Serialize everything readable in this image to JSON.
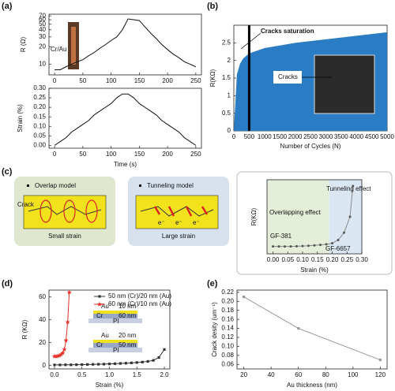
{
  "panel_labels": [
    "(a)",
    "(b)",
    "(c)",
    "(d)",
    "(e)"
  ],
  "diagram": {
    "overlap_title": "Overlap model",
    "crack": "Crack",
    "small_strain": "Small strain",
    "tunneling_title": "Tunneling model",
    "large_strain": "Large strain",
    "electron": "e⁻"
  },
  "insets": {
    "top": [
      "Au",
      "10 nm",
      "Cr",
      "60 nm",
      "PI"
    ],
    "bottom": [
      "Au",
      "20 nm",
      "Cr",
      "50 nm",
      "PI"
    ]
  },
  "chart_data": [
    {
      "type": "line",
      "ylabel": "R (Ω)",
      "ylog": true,
      "annotations": [
        "Cr/Au"
      ],
      "x": [
        0,
        10,
        20,
        30,
        40,
        50,
        60,
        70,
        80,
        90,
        100,
        110,
        120,
        130,
        140,
        150,
        160,
        170,
        180,
        190,
        200,
        210,
        220,
        230,
        240,
        250
      ],
      "series": [
        {
          "color": "#111111",
          "values": [
            8,
            8,
            9,
            10,
            11,
            12,
            14,
            16,
            19,
            22,
            26,
            30,
            40,
            62,
            60,
            58,
            45,
            35,
            28,
            22,
            18,
            15,
            13,
            11,
            10,
            9
          ]
        }
      ],
      "xlim": [
        -10,
        260
      ],
      "xticks": [
        0,
        50,
        100,
        150,
        200,
        250
      ],
      "ylim": [
        6.5,
        75
      ],
      "yticks": [
        10,
        20,
        30,
        40,
        50,
        60,
        70
      ]
    },
    {
      "type": "line",
      "xlabel": "Time (s)",
      "ylabel": "Strain (%)",
      "x": [
        0,
        10,
        20,
        30,
        40,
        50,
        60,
        70,
        80,
        90,
        100,
        110,
        120,
        130,
        140,
        150,
        160,
        170,
        180,
        190,
        200,
        210,
        220,
        230,
        240,
        250
      ],
      "series": [
        {
          "color": "#111111",
          "values": [
            0,
            0.02,
            0.04,
            0.07,
            0.09,
            0.11,
            0.13,
            0.16,
            0.18,
            0.2,
            0.22,
            0.25,
            0.27,
            0.27,
            0.25,
            0.22,
            0.2,
            0.18,
            0.16,
            0.13,
            0.11,
            0.09,
            0.07,
            0.04,
            0.02,
            0
          ]
        }
      ],
      "xlim": [
        -10,
        260
      ],
      "xticks": [
        0,
        50,
        100,
        150,
        200,
        250
      ],
      "ylim": [
        -0.015,
        0.3
      ],
      "yticks": [
        {
          "value": 0,
          "label": "0.00"
        },
        {
          "value": 0.05,
          "label": "0.05"
        },
        {
          "value": 0.1,
          "label": "0.10"
        },
        {
          "value": 0.15,
          "label": "0.15"
        },
        {
          "value": 0.2,
          "label": "0.20"
        },
        {
          "value": 0.25,
          "label": "0.25"
        },
        {
          "value": 0.3,
          "label": "0.30"
        }
      ]
    },
    {
      "type": "area",
      "xlabel": "Number of Cycles (N)",
      "ylabel": "R(KΩ)",
      "annotations": [
        "Cracks saturation",
        "Cracks"
      ],
      "cycle_marker": 500,
      "x": [
        0,
        100,
        200,
        300,
        500,
        1000,
        2000,
        3000,
        4000,
        5000
      ],
      "series": [
        {
          "color": "#2a7cc4",
          "values": [
            0,
            1.6,
            1.9,
            2.05,
            2.2,
            2.35,
            2.5,
            2.6,
            2.7,
            2.8
          ]
        }
      ],
      "xlim": [
        0,
        5000
      ],
      "xticks": [
        0,
        500,
        1000,
        1500,
        2000,
        2500,
        3000,
        3500,
        4000,
        4500,
        5000
      ],
      "ylim": [
        0,
        3
      ],
      "yticks": [
        0,
        0.5,
        1,
        1.5,
        2,
        2.5
      ]
    },
    {
      "type": "line",
      "xlabel": "Strain (%)",
      "ylabel": "R(KΩ)",
      "annotations": [
        "Tunneling effect",
        "Overlapping effect",
        "GF-381",
        "GF-6657"
      ],
      "shade_split": 0.19,
      "x": [
        0,
        0.02,
        0.04,
        0.06,
        0.08,
        0.1,
        0.12,
        0.14,
        0.16,
        0.18,
        0.2,
        0.22,
        0.24,
        0.26,
        0.27
      ],
      "series": [
        {
          "color": "#888888",
          "marker": "circle",
          "values": [
            7,
            7,
            7,
            7,
            7.2,
            7.4,
            7.6,
            8,
            8.5,
            9,
            10,
            13,
            20,
            35,
            64
          ]
        }
      ],
      "xlim": [
        -0.02,
        0.3
      ],
      "xticks": [
        {
          "value": 0,
          "label": "0.00"
        },
        {
          "value": 0.05,
          "label": "0.05"
        },
        {
          "value": 0.1,
          "label": "0.10"
        },
        {
          "value": 0.15,
          "label": "0.15"
        },
        {
          "value": 0.2,
          "label": "0.20"
        },
        {
          "value": 0.25,
          "label": "0.25"
        },
        {
          "value": 0.3,
          "label": "0.30"
        }
      ],
      "ylim": [
        0,
        70
      ]
    },
    {
      "type": "line",
      "xlabel": "Strain (%)",
      "ylabel": "R (KΩ)",
      "legend": "upper right",
      "series": [
        {
          "name": "50 nm (Cr)/20 nm (Au)",
          "color": "#333333",
          "marker": "square",
          "x": [
            0,
            0.1,
            0.2,
            0.3,
            0.4,
            0.5,
            0.6,
            0.7,
            0.8,
            0.9,
            1,
            1.1,
            1.2,
            1.3,
            1.4,
            1.5,
            1.6,
            1.7,
            1.8,
            1.9,
            2
          ],
          "values": [
            0.5,
            0.5,
            0.6,
            0.6,
            0.7,
            0.8,
            0.9,
            1,
            1.1,
            1.2,
            1.4,
            1.6,
            1.8,
            2,
            2.3,
            2.6,
            3,
            3.6,
            4.5,
            7,
            14
          ]
        },
        {
          "name": "60 nm (Cr)/10 nm (Au)",
          "color": "#e8312a",
          "marker": "star",
          "x": [
            0,
            0.03,
            0.06,
            0.09,
            0.12,
            0.15,
            0.18,
            0.21,
            0.24,
            0.27
          ],
          "values": [
            8,
            8,
            8.3,
            8.7,
            9.5,
            11,
            14,
            22,
            38,
            64
          ]
        }
      ],
      "xlim": [
        -0.1,
        2.1
      ],
      "xticks": [
        {
          "value": 0,
          "label": "0.0"
        },
        {
          "value": 0.5,
          "label": "0.5"
        },
        {
          "value": 1,
          "label": "1.0"
        },
        {
          "value": 1.5,
          "label": "1.5"
        },
        {
          "value": 2,
          "label": "2.0"
        }
      ],
      "ylim": [
        -3,
        66
      ],
      "yticks": [
        0,
        20,
        40,
        60
      ]
    },
    {
      "type": "line",
      "xlabel": "Au thickness (nm)",
      "ylabel": "Crack desity (um⁻¹)",
      "x": [
        20,
        60,
        120
      ],
      "series": [
        {
          "color": "#999999",
          "marker": "square",
          "values": [
            0.21,
            0.14,
            0.07
          ]
        }
      ],
      "xlim": [
        15,
        125
      ],
      "xticks": [
        20,
        40,
        60,
        80,
        100,
        120
      ],
      "ylim": [
        0.05,
        0.225
      ],
      "yticks": [
        {
          "value": 0.06,
          "label": "0.06"
        },
        {
          "value": 0.08,
          "label": "0.08"
        },
        {
          "value": 0.1,
          "label": "0.10"
        },
        {
          "value": 0.12,
          "label": "0.12"
        },
        {
          "value": 0.14,
          "label": "0.14"
        },
        {
          "value": 0.16,
          "label": "0.16"
        },
        {
          "value": 0.18,
          "label": "0.18"
        },
        {
          "value": 0.2,
          "label": "0.20"
        },
        {
          "value": 0.22,
          "label": "0.22"
        }
      ]
    }
  ]
}
